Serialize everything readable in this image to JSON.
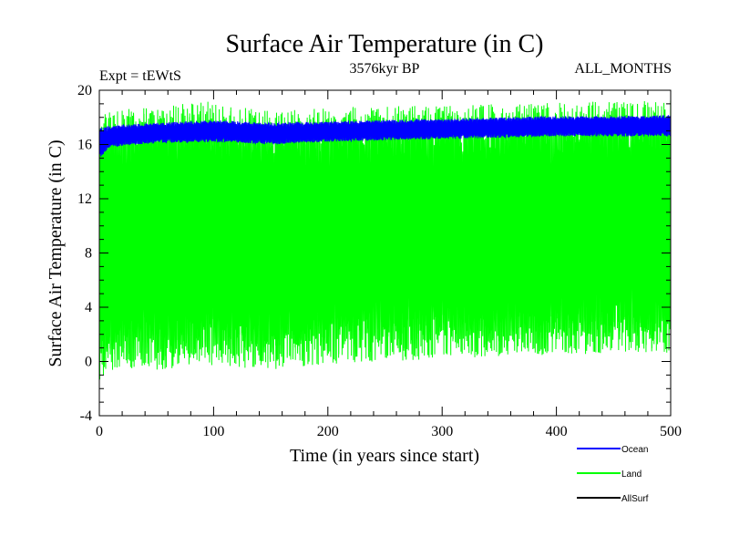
{
  "chart_data": {
    "type": "line",
    "title": "Surface Air Temperature (in C)",
    "subtitle": "3576kyr BP",
    "expt_label": "Expt = tEWtS",
    "period_label": "ALL_MONTHS",
    "xlabel": "Time (in years since start)",
    "ylabel": "Surface Air Temperature (in C)",
    "xlim": [
      0,
      500
    ],
    "ylim": [
      -4,
      20
    ],
    "x_ticks": [
      0,
      100,
      200,
      300,
      400,
      500
    ],
    "y_ticks": [
      -4,
      0,
      4,
      8,
      12,
      16,
      20
    ],
    "series": [
      {
        "name": "Ocean",
        "color": "#0000ff",
        "note": "monthly values oscillating within a narrow band",
        "envelope_x": [
          0,
          10,
          50,
          100,
          150,
          200,
          250,
          300,
          350,
          400,
          450,
          500
        ],
        "envelope_max": [
          17.2,
          17.4,
          17.6,
          17.8,
          17.6,
          17.7,
          17.8,
          17.9,
          18.0,
          18.1,
          18.1,
          18.2
        ],
        "envelope_min": [
          15.0,
          15.8,
          16.1,
          16.2,
          16.0,
          16.2,
          16.3,
          16.4,
          16.5,
          16.6,
          16.6,
          16.6
        ]
      },
      {
        "name": "Land",
        "color": "#00ff00",
        "note": "monthly values with large seasonal cycle",
        "envelope_x": [
          0,
          10,
          50,
          100,
          150,
          200,
          250,
          300,
          350,
          400,
          450,
          500
        ],
        "envelope_max": [
          18.0,
          18.5,
          18.8,
          19.2,
          18.5,
          18.7,
          18.8,
          18.9,
          19.0,
          19.1,
          19.2,
          19.4
        ],
        "envelope_min": [
          -1.5,
          -0.8,
          -0.6,
          -0.3,
          -0.6,
          -0.2,
          0.0,
          0.2,
          0.3,
          0.5,
          0.6,
          0.6
        ]
      },
      {
        "name": "AllSurf",
        "color": "#000000",
        "note": "hidden beneath other series",
        "envelope_x": [],
        "envelope_max": [],
        "envelope_min": []
      }
    ],
    "legend_position": "bottom-right"
  }
}
